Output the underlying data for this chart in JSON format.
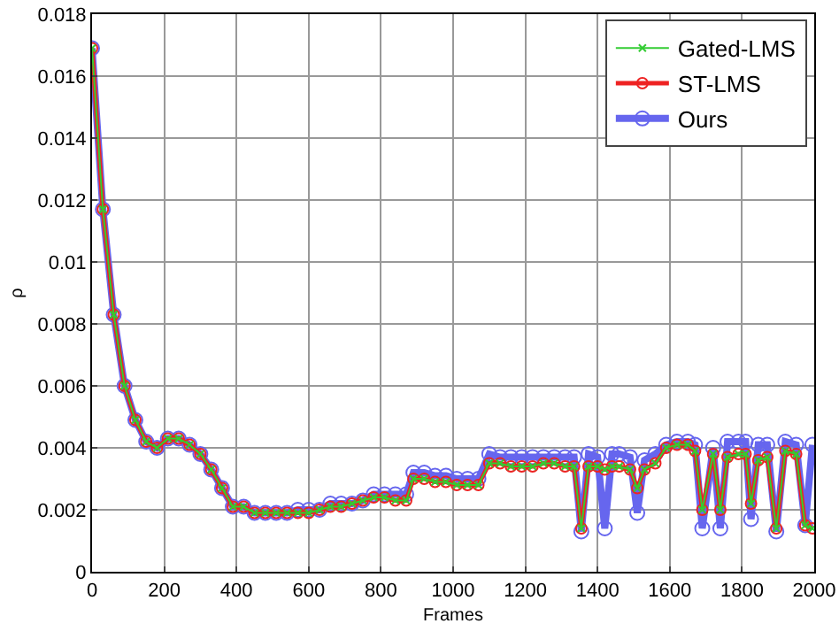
{
  "chart_data": {
    "type": "line",
    "xlabel": "Frames",
    "ylabel": "ρ",
    "xlim": [
      0,
      2000
    ],
    "xticks": [
      0,
      200,
      400,
      600,
      800,
      1000,
      1200,
      1400,
      1600,
      1800,
      2000
    ],
    "ylim": [
      0,
      0.018
    ],
    "yticks": [
      0,
      0.002,
      0.004,
      0.006,
      0.008,
      0.01,
      0.012,
      0.014,
      0.016,
      0.018
    ],
    "grid": true,
    "legend": "top right",
    "x": [
      0,
      30,
      60,
      90,
      120,
      150,
      180,
      210,
      240,
      270,
      300,
      330,
      360,
      390,
      420,
      450,
      480,
      510,
      540,
      570,
      600,
      630,
      660,
      690,
      720,
      750,
      780,
      810,
      840,
      870,
      890,
      920,
      950,
      980,
      1010,
      1040,
      1070,
      1100,
      1130,
      1160,
      1190,
      1220,
      1250,
      1280,
      1310,
      1335,
      1355,
      1375,
      1400,
      1420,
      1440,
      1460,
      1490,
      1510,
      1530,
      1560,
      1590,
      1620,
      1650,
      1670,
      1690,
      1720,
      1740,
      1760,
      1790,
      1810,
      1825,
      1845,
      1870,
      1895,
      1920,
      1950,
      1975,
      1995
    ],
    "series": [
      {
        "name": "Gated-LMS",
        "color": "#33cc33",
        "marker": "cross",
        "values": [
          0.0169,
          0.0117,
          0.0083,
          0.006,
          0.0049,
          0.0042,
          0.004,
          0.0043,
          0.0043,
          0.0041,
          0.0038,
          0.0033,
          0.0027,
          0.0021,
          0.0021,
          0.0019,
          0.0019,
          0.0019,
          0.0019,
          0.0019,
          0.0019,
          0.002,
          0.0021,
          0.0021,
          0.0022,
          0.0023,
          0.0024,
          0.0024,
          0.0023,
          0.0023,
          0.003,
          0.003,
          0.0029,
          0.0029,
          0.0028,
          0.0028,
          0.0028,
          0.0035,
          0.0035,
          0.0034,
          0.0034,
          0.0034,
          0.0035,
          0.0035,
          0.0034,
          0.0034,
          0.0014,
          0.0034,
          0.0034,
          0.0033,
          0.0034,
          0.0034,
          0.0033,
          0.0027,
          0.0033,
          0.0035,
          0.004,
          0.0041,
          0.0041,
          0.0039,
          0.002,
          0.0038,
          0.002,
          0.0037,
          0.0038,
          0.0038,
          0.0022,
          0.0036,
          0.0037,
          0.0014,
          0.0039,
          0.0038,
          0.0015,
          0.0014
        ]
      },
      {
        "name": "ST-LMS",
        "color": "#ee2222",
        "marker": "circle",
        "values": [
          0.0169,
          0.0117,
          0.0083,
          0.006,
          0.0049,
          0.0042,
          0.004,
          0.0043,
          0.0043,
          0.0041,
          0.0038,
          0.0033,
          0.0027,
          0.0021,
          0.0021,
          0.0019,
          0.0019,
          0.0019,
          0.0019,
          0.0019,
          0.0019,
          0.002,
          0.0021,
          0.0021,
          0.0022,
          0.0023,
          0.0024,
          0.0024,
          0.0023,
          0.0023,
          0.003,
          0.003,
          0.0029,
          0.0029,
          0.0028,
          0.0028,
          0.0028,
          0.0035,
          0.0035,
          0.0034,
          0.0034,
          0.0034,
          0.0035,
          0.0035,
          0.0034,
          0.0034,
          0.0014,
          0.0034,
          0.0034,
          0.0033,
          0.0034,
          0.0034,
          0.0033,
          0.0027,
          0.0033,
          0.0035,
          0.004,
          0.0041,
          0.0041,
          0.0039,
          0.002,
          0.0038,
          0.002,
          0.0037,
          0.0038,
          0.0038,
          0.0022,
          0.0036,
          0.0037,
          0.0014,
          0.0039,
          0.0038,
          0.0015,
          0.0014
        ]
      },
      {
        "name": "Ours",
        "color": "#6666ee",
        "marker": "circle",
        "values": [
          0.0169,
          0.0117,
          0.0083,
          0.006,
          0.0049,
          0.0042,
          0.004,
          0.0043,
          0.0043,
          0.0041,
          0.0038,
          0.0033,
          0.0027,
          0.0021,
          0.0021,
          0.0019,
          0.0019,
          0.0019,
          0.0019,
          0.002,
          0.002,
          0.002,
          0.0022,
          0.0022,
          0.0022,
          0.0023,
          0.0025,
          0.0025,
          0.0025,
          0.0025,
          0.0032,
          0.0032,
          0.0031,
          0.0031,
          0.003,
          0.003,
          0.003,
          0.0038,
          0.0037,
          0.0037,
          0.0037,
          0.0037,
          0.0037,
          0.0037,
          0.0037,
          0.0037,
          0.0013,
          0.0038,
          0.0037,
          0.0014,
          0.0038,
          0.0038,
          0.0037,
          0.0019,
          0.0036,
          0.0038,
          0.0041,
          0.0042,
          0.0042,
          0.0041,
          0.0014,
          0.004,
          0.0014,
          0.0042,
          0.0042,
          0.0042,
          0.0017,
          0.0041,
          0.0041,
          0.0013,
          0.0042,
          0.0041,
          0.0015,
          0.0041
        ]
      }
    ]
  }
}
